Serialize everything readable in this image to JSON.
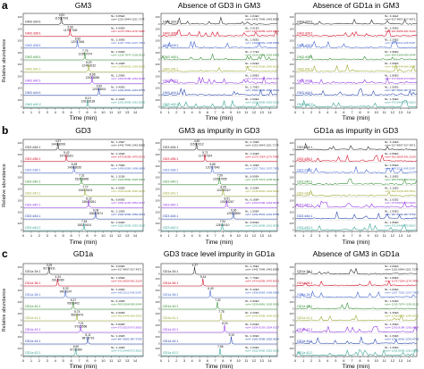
{
  "figure": {
    "colors": {
      "frame": "#333333",
      "tick_text": "#222222",
      "series": [
        "#222222",
        "#d0021b",
        "#3a5fcd",
        "#2e8b2e",
        "#9aa52a",
        "#8a2be2",
        "#1e3fa8",
        "#2a9d8f"
      ]
    },
    "y_label": "Relative abundance",
    "x_label": "Time (min)",
    "x_ticks": [
      "0",
      "1",
      "2",
      "3",
      "4",
      "5",
      "6",
      "7",
      "8",
      "9",
      "10",
      "11",
      "12",
      "13",
      "14"
    ],
    "y_tick": "100",
    "y_tick_zero": "0"
  },
  "chart_data": [
    {
      "letter": "a",
      "type": "line",
      "row_labels": [
        "GM3 d34:1",
        "GM3 d36:1",
        "GM3 d38:1",
        "GM3 d40:1",
        "GM3 d41:1",
        "GM3 d42:1",
        "GM3 d44:1",
        "GM3 d42:2"
      ],
      "panels": [
        {
          "title": "GM3",
          "peaks": [
            {
              "rt": 4.81,
              "label": "4.81"
            },
            {
              "rt": 5.9,
              "label": "5.90"
            },
            {
              "rt": 6.82,
              "label": "6.82"
            },
            {
              "rt": 7.75,
              "label": "7.75"
            },
            {
              "rt": 8.2,
              "label": "8.20"
            },
            {
              "rt": 8.66,
              "label": "8.66"
            },
            {
              "rt": 9.5,
              "label": "9.50"
            },
            {
              "rt": 8.1,
              "label": "8.10"
            }
          ],
          "masses": [
            "1151.7001",
            "1179.7349",
            "1207.7661",
            "1235.7974",
            "1249.8132",
            "1263.8286",
            "1291.8601",
            "1261.8138"
          ],
          "nl": [
            "NL: 6.85E6",
            "NL: 4.90E6",
            "NL: 2.30E6",
            "NL: 1.50E6",
            "NL: 6.10E5",
            "NL: 1.20E6",
            "NL: 3.40E5",
            "NL: 2.10E5"
          ],
          "mz": [
            "m/z= 1151.6944-1151.7174",
            "m/z= 1179.7254-1179.7490",
            "m/z= 1207.7561-1207.7803",
            "m/z= 1235.7874-1235.8122",
            "m/z= 1249.8032-1249.8282",
            "m/z= 1263.8186-1263.8438",
            "m/z= 1291.8501-1291.8759",
            "m/z= 1261.8038-1261.8290"
          ],
          "noise": false
        },
        {
          "title": "Absence of GD3 in GM3",
          "peaks": [
            {
              "rt": 4.9,
              "label": ""
            },
            {
              "rt": 6.0,
              "label": ""
            },
            {
              "rt": 6.9,
              "label": ""
            },
            {
              "rt": 7.8,
              "label": ""
            },
            {
              "rt": 8.3,
              "label": ""
            },
            {
              "rt": 8.7,
              "label": ""
            },
            {
              "rt": 9.6,
              "label": ""
            },
            {
              "rt": 8.2,
              "label": ""
            }
          ],
          "masses": [
            "",
            "",
            "",
            "",
            "",
            "",
            "",
            ""
          ],
          "nl": [
            "NL: 1.84E3",
            "NL: 2.01E3",
            "NL: 1.95E3",
            "NL: 1.77E3",
            "NL: 1.62E3",
            "NL: 1.88E3",
            "NL: 1.70E3",
            "NL: 1.59E3"
          ],
          "mz": [
            "m/z= 1442.7945-1442.8055",
            "m/z= 1470.8255-1470.8371",
            "m/z= 1498.8569-1498.8689",
            "m/z= 1526.8881-1526.9003",
            "m/z= 1540.9038-1540.9162",
            "m/z= 1554.9193-1554.9317",
            "m/z= 1582.9506-1582.9634",
            "m/z= 1552.9036-1552.9160"
          ],
          "noise": true
        },
        {
          "title": "Absence of GD1a in GM3",
          "peaks": [
            {
              "rt": 4.7,
              "label": ""
            },
            {
              "rt": 5.8,
              "label": ""
            },
            {
              "rt": 6.7,
              "label": ""
            },
            {
              "rt": 7.6,
              "label": ""
            },
            {
              "rt": 8.1,
              "label": ""
            },
            {
              "rt": 8.5,
              "label": ""
            },
            {
              "rt": 9.4,
              "label": ""
            },
            {
              "rt": 8.0,
              "label": ""
            }
          ],
          "masses": [
            "",
            "",
            "",
            "",
            "",
            "",
            "",
            ""
          ],
          "nl": [
            "NL: 3.11E3",
            "NL: 2.45E3",
            "NL: 2.20E3",
            "NL: 1.98E3",
            "NL: 1.66E3",
            "NL: 1.80E3",
            "NL: 1.55E3",
            "NL: 1.49E3"
          ],
          "mz": [
            "m/z= 917.4897-917.4971",
            "m/z= 931.5055-931.5129",
            "m/z= 945.5211-945.5287",
            "m/z= 959.5368-959.5444",
            "m/z= 966.5446-966.5524",
            "m/z= 973.5525-973.5603",
            "m/z= 987.5681-987.5759",
            "m/z= 972.5445-972.5523"
          ],
          "noise": true
        }
      ]
    },
    {
      "letter": "b",
      "type": "line",
      "row_labels": [
        "GD3 d34:1",
        "GD3 d36:1",
        "GD3 d38:1",
        "GD3 d40:1",
        "GD3 d41:1",
        "GD3 d42:1",
        "GD3 d44:1",
        "GD3 d42:2"
      ],
      "panels": [
        {
          "title": "GD3",
          "peaks": [
            {
              "rt": 4.37,
              "label": "4.37"
            },
            {
              "rt": 5.42,
              "label": "5.42"
            },
            {
              "rt": 6.38,
              "label": "6.38"
            },
            {
              "rt": 7.31,
              "label": "7.31"
            },
            {
              "rt": 7.77,
              "label": "7.77"
            },
            {
              "rt": 8.22,
              "label": "8.22"
            },
            {
              "rt": 9.08,
              "label": "9.08"
            },
            {
              "rt": 7.64,
              "label": "7.64"
            }
          ],
          "masses": [
            "1442.8008",
            "1470.8321",
            "1498.8635",
            "1526.8948",
            "1540.9104",
            "1554.9261",
            "1582.9574",
            "1552.9104"
          ],
          "nl": [
            "NL: 1.15E7",
            "NL: 2.16E6",
            "NL: 1.70E6",
            "NL: 1.31E6",
            "NL: 4.05E5",
            "NL: 8.80E5",
            "NL: 2.10E5",
            "NL: 1.60E5"
          ],
          "mz": [
            "m/z= 1442.7945-1442.8055",
            "m/z= 1470.8255-1470.8371",
            "m/z= 1498.8569-1498.8689",
            "m/z= 1526.8881-1526.9003",
            "m/z= 1540.9038-1540.9162",
            "m/z= 1554.9193-1554.9317",
            "m/z= 1582.9506-1582.9634",
            "m/z= 1552.9036-1552.9160"
          ],
          "noise": false
        },
        {
          "title": "GM3 as impurity in GD3",
          "peaks": [
            {
              "rt": 4.62,
              "label": "4.62"
            },
            {
              "rt": 5.71,
              "label": "5.71"
            },
            {
              "rt": 6.66,
              "label": "6.66"
            },
            {
              "rt": 7.59,
              "label": "7.59"
            },
            {
              "rt": 8.05,
              "label": "8.05"
            },
            {
              "rt": 8.51,
              "label": "8.51"
            },
            {
              "rt": 9.36,
              "label": "9.36"
            },
            {
              "rt": 7.94,
              "label": "7.94"
            }
          ],
          "masses": [
            "1151.7012",
            "1179.7324",
            "1207.7640",
            "1235.7955",
            "1249.8110",
            "1263.8267",
            "1291.8580",
            "1261.8110"
          ],
          "nl": [
            "NL: 2.70E5",
            "NL: 1.43E5",
            "NL: 1.10E5",
            "NL: 8.90E4",
            "NL: 3.20E4",
            "NL: 6.10E4",
            "NL: 1.50E4",
            "NL: 9.80E3"
          ],
          "mz": [
            "m/z= 1151.6944-1151.7174",
            "m/z= 1179.7254-1179.7490",
            "m/z= 1207.7561-1207.7803",
            "m/z= 1235.7874-1235.8122",
            "m/z= 1249.8032-1249.8282",
            "m/z= 1263.8186-1263.8438",
            "m/z= 1291.8501-1291.8759",
            "m/z= 1261.8038-1261.8290"
          ],
          "noise": false
        },
        {
          "title": "GD1a as impurity in GD3",
          "peaks": [
            {
              "rt": 4.2,
              "label": "4.20"
            },
            {
              "rt": 5.25,
              "label": "5.25"
            },
            {
              "rt": 6.2,
              "label": "6.20"
            },
            {
              "rt": 7.1,
              "label": "7.10"
            },
            {
              "rt": 7.6,
              "label": ""
            },
            {
              "rt": 8.0,
              "label": ""
            },
            {
              "rt": 8.9,
              "label": ""
            },
            {
              "rt": 7.5,
              "label": ""
            }
          ],
          "masses": [
            "",
            "",
            "",
            "",
            "",
            "",
            "",
            ""
          ],
          "nl": [
            "NL: 3.10E3",
            "NL: 2.88E3",
            "NL: 2.55E3",
            "NL: 2.30E3",
            "NL: 2.10E3",
            "NL: 2.02E3",
            "NL: 1.90E3",
            "NL: 1.85E3"
          ],
          "mz": [
            "m/z= 917.4897-917.4971",
            "m/z= 931.5055-931.5129",
            "m/z= 945.5211-945.5287",
            "m/z= 959.5368-959.5444",
            "m/z= 966.5446-966.5524",
            "m/z= 973.5525-973.5603",
            "m/z= 987.5681-987.5759",
            "m/z= 972.5445-972.5523"
          ],
          "noise": true
        }
      ]
    },
    {
      "letter": "c",
      "type": "line",
      "row_labels": [
        "GD1a 34:1",
        "GD1a 36:1",
        "GD1a 38:1",
        "GD1a 40:1",
        "GD1a 41:1",
        "GD1a 42:1",
        "GD1a 44:1",
        "GD1a 42:2"
      ],
      "panels": [
        {
          "title": "GD1a",
          "peaks": [
            {
              "rt": 3.25,
              "label": "3.25"
            },
            {
              "rt": 4.34,
              "label": "4.34"
            },
            {
              "rt": 5.32,
              "label": "5.32"
            },
            {
              "rt": 6.27,
              "label": "6.27"
            },
            {
              "rt": 6.74,
              "label": "6.74"
            },
            {
              "rt": 7.21,
              "label": "7.21"
            },
            {
              "rt": 8.11,
              "label": "8.11"
            },
            {
              "rt": 6.6,
              "label": "6.60"
            }
          ],
          "masses": [
            "917.4931",
            "931.5089",
            "945.5247",
            "959.5402",
            "966.5479",
            "973.5558",
            "987.5716",
            "972.5480"
          ],
          "nl": [
            "NL: 9.60E6",
            "NL: 1.95E6",
            "NL: 1.20E6",
            "NL: 9.10E5",
            "NL: 2.90E5",
            "NL: 5.80E5",
            "NL: 1.40E5",
            "NL: 1.10E5"
          ],
          "mz": [
            "m/z= 917.4897-917.4971",
            "m/z= 931.5055-931.5129",
            "m/z= 945.5211-945.5287",
            "m/z= 959.5368-959.5444",
            "m/z= 966.5446-966.5524",
            "m/z= 973.5525-973.5603",
            "m/z= 987.5681-987.5759",
            "m/z= 972.5445-972.5523"
          ],
          "noise": false
        },
        {
          "title": "GD3 trace level impurity in GD1a",
          "peaks": [
            {
              "rt": 4.37,
              "label": "4.37"
            },
            {
              "rt": 5.44,
              "label": "5.44"
            },
            {
              "rt": 6.4,
              "label": "6.40"
            },
            {
              "rt": 7.32,
              "label": "7.32"
            },
            {
              "rt": 7.78,
              "label": "7.78"
            },
            {
              "rt": 8.24,
              "label": "8.24"
            },
            {
              "rt": 9.1,
              "label": "9.10"
            },
            {
              "rt": 7.66,
              "label": "7.66"
            }
          ],
          "masses": [
            "",
            "",
            "",
            "",
            "",
            "",
            "",
            ""
          ],
          "nl": [
            "NL: 1.15E4",
            "NL: 7.70E3",
            "NL: 6.10E3",
            "NL: 4.90E3",
            "NL: 2.20E3",
            "NL: 3.60E3",
            "NL: 1.30E3",
            "NL: 1.00E3"
          ],
          "mz": [
            "m/z= 1442.7945-1442.8055",
            "m/z= 1470.8255-1470.8371",
            "m/z= 1498.8569-1498.8689",
            "m/z= 1526.8881-1526.9003",
            "m/z= 1540.9038-1540.9162",
            "m/z= 1554.9193-1554.9317",
            "m/z= 1582.9506-1582.9634",
            "m/z= 1552.9036-1552.9160"
          ],
          "noise": false
        },
        {
          "title": "Absence of GM3 in GD1a",
          "peaks": [
            {
              "rt": 4.6,
              "label": ""
            },
            {
              "rt": 5.7,
              "label": ""
            },
            {
              "rt": 6.6,
              "label": ""
            },
            {
              "rt": 7.5,
              "label": ""
            },
            {
              "rt": 8.0,
              "label": ""
            },
            {
              "rt": 8.5,
              "label": ""
            },
            {
              "rt": 9.3,
              "label": ""
            },
            {
              "rt": 7.9,
              "label": ""
            }
          ],
          "masses": [
            "",
            "",
            "",
            "",
            "",
            "",
            "",
            ""
          ],
          "nl": [
            "NL: 2.06E3",
            "NL: 1.80E3",
            "NL: 1.60E3",
            "NL: 1.52E3",
            "NL: 1.40E3",
            "NL: 1.45E3",
            "NL: 1.33E3",
            "NL: 1.30E3"
          ],
          "mz": [
            "m/z= 1151.6944-1151.7174",
            "m/z= 1179.7254-1179.7490",
            "m/z= 1207.7561-1207.7803",
            "m/z= 1235.7874-1235.8122",
            "m/z= 1249.8032-1249.8282",
            "m/z= 1263.8186-1263.8438",
            "m/z= 1291.8501-1291.8759",
            "m/z= 1261.8038-1261.8290"
          ],
          "noise": true
        }
      ]
    }
  ]
}
